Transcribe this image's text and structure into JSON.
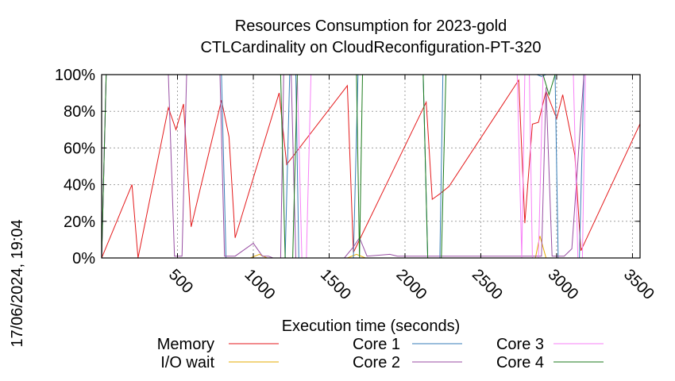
{
  "chart_data": {
    "type": "line",
    "title": "Resources Consumption for 2023-gold",
    "subtitle": "CTLCardinality on CloudReconfiguration-PT-320",
    "xlabel": "Execution time (seconds)",
    "ylabel": "",
    "xlim": [
      0,
      3550
    ],
    "ylim": [
      0,
      100
    ],
    "x_ticks": [
      500,
      1000,
      1500,
      2000,
      2500,
      3000,
      3500
    ],
    "x_tick_labels": [
      "500",
      "1000",
      "1500",
      "2000",
      "2500",
      "3000",
      "3500"
    ],
    "y_ticks": [
      0,
      20,
      40,
      60,
      80,
      100
    ],
    "y_tick_labels": [
      "0%",
      "20%",
      "40%",
      "60%",
      "80%",
      "100%"
    ],
    "grid": true,
    "legend_position": "bottom",
    "timestamp": "17/06/2024, 19:04",
    "series": [
      {
        "name": "Memory",
        "color": "#e41a1c",
        "points": [
          [
            0,
            0
          ],
          [
            200,
            40
          ],
          [
            240,
            0
          ],
          [
            440,
            82
          ],
          [
            490,
            70
          ],
          [
            540,
            84
          ],
          [
            590,
            17
          ],
          [
            790,
            86
          ],
          [
            840,
            66
          ],
          [
            880,
            11
          ],
          [
            1170,
            90
          ],
          [
            1220,
            51
          ],
          [
            1620,
            94
          ],
          [
            1660,
            3
          ],
          [
            2140,
            85
          ],
          [
            2180,
            32
          ],
          [
            2230,
            35
          ],
          [
            2290,
            39
          ],
          [
            2750,
            97
          ],
          [
            2790,
            19
          ],
          [
            2840,
            73
          ],
          [
            2880,
            74
          ],
          [
            2930,
            91
          ],
          [
            3000,
            76
          ],
          [
            3040,
            89
          ],
          [
            3120,
            56
          ],
          [
            3160,
            4
          ],
          [
            3560,
            75
          ]
        ]
      },
      {
        "name": "I/O wait",
        "color": "#e6ab02",
        "points": [
          [
            0,
            0
          ],
          [
            980,
            0
          ],
          [
            1040,
            2
          ],
          [
            1090,
            0
          ],
          [
            1620,
            0
          ],
          [
            1680,
            2
          ],
          [
            1740,
            0
          ],
          [
            2860,
            0
          ],
          [
            2890,
            12
          ],
          [
            2930,
            0
          ],
          [
            3560,
            0
          ]
        ]
      },
      {
        "name": "Core 1",
        "color": "#377eb8",
        "points": [
          [
            0,
            0
          ],
          [
            30,
            100
          ],
          [
            790,
            100
          ],
          [
            820,
            0
          ],
          [
            1210,
            0
          ],
          [
            1240,
            100
          ],
          [
            1280,
            100
          ],
          [
            1300,
            0
          ],
          [
            1660,
            0
          ],
          [
            1690,
            100
          ],
          [
            2120,
            100
          ],
          [
            2150,
            0
          ],
          [
            2230,
            0
          ],
          [
            2250,
            100
          ],
          [
            2870,
            100
          ],
          [
            2900,
            99
          ],
          [
            2930,
            100
          ],
          [
            2990,
            100
          ],
          [
            3010,
            0
          ],
          [
            3150,
            0
          ],
          [
            3180,
            100
          ],
          [
            3560,
            100
          ]
        ]
      },
      {
        "name": "Core 2",
        "color": "#984ea3",
        "points": [
          [
            0,
            0
          ],
          [
            30,
            100
          ],
          [
            440,
            100
          ],
          [
            480,
            1
          ],
          [
            530,
            1
          ],
          [
            560,
            100
          ],
          [
            780,
            100
          ],
          [
            810,
            1
          ],
          [
            880,
            1
          ],
          [
            1000,
            8
          ],
          [
            1060,
            1
          ],
          [
            1100,
            1
          ],
          [
            1130,
            0
          ],
          [
            1180,
            0
          ],
          [
            1200,
            100
          ],
          [
            1250,
            100
          ],
          [
            1280,
            0
          ],
          [
            1600,
            0
          ],
          [
            1660,
            6
          ],
          [
            1700,
            11
          ],
          [
            1750,
            1
          ],
          [
            1900,
            2
          ],
          [
            1950,
            1
          ],
          [
            2900,
            1
          ],
          [
            2930,
            93
          ],
          [
            2970,
            1
          ],
          [
            3050,
            1
          ],
          [
            3100,
            5
          ],
          [
            3180,
            100
          ],
          [
            3560,
            100
          ]
        ]
      },
      {
        "name": "Core 3",
        "color": "#f781f7",
        "points": [
          [
            0,
            0
          ],
          [
            30,
            100
          ],
          [
            1290,
            100
          ],
          [
            1320,
            0
          ],
          [
            1350,
            0
          ],
          [
            1380,
            100
          ],
          [
            2740,
            100
          ],
          [
            2770,
            0
          ],
          [
            2790,
            100
          ],
          [
            2820,
            100
          ],
          [
            2840,
            0
          ],
          [
            2880,
            0
          ],
          [
            2910,
            100
          ],
          [
            3110,
            100
          ],
          [
            3140,
            0
          ],
          [
            3170,
            0
          ],
          [
            3190,
            100
          ],
          [
            3560,
            100
          ]
        ]
      },
      {
        "name": "Core 4",
        "color": "#1b7a1b",
        "points": [
          [
            0,
            0
          ],
          [
            30,
            100
          ],
          [
            1180,
            100
          ],
          [
            1210,
            0
          ],
          [
            1260,
            0
          ],
          [
            1290,
            100
          ],
          [
            1680,
            100
          ],
          [
            1700,
            0
          ],
          [
            1720,
            100
          ],
          [
            2120,
            100
          ],
          [
            2150,
            0
          ],
          [
            2240,
            0
          ],
          [
            2270,
            100
          ],
          [
            2910,
            100
          ],
          [
            2950,
            89
          ],
          [
            2990,
            100
          ],
          [
            3560,
            100
          ]
        ]
      }
    ]
  }
}
